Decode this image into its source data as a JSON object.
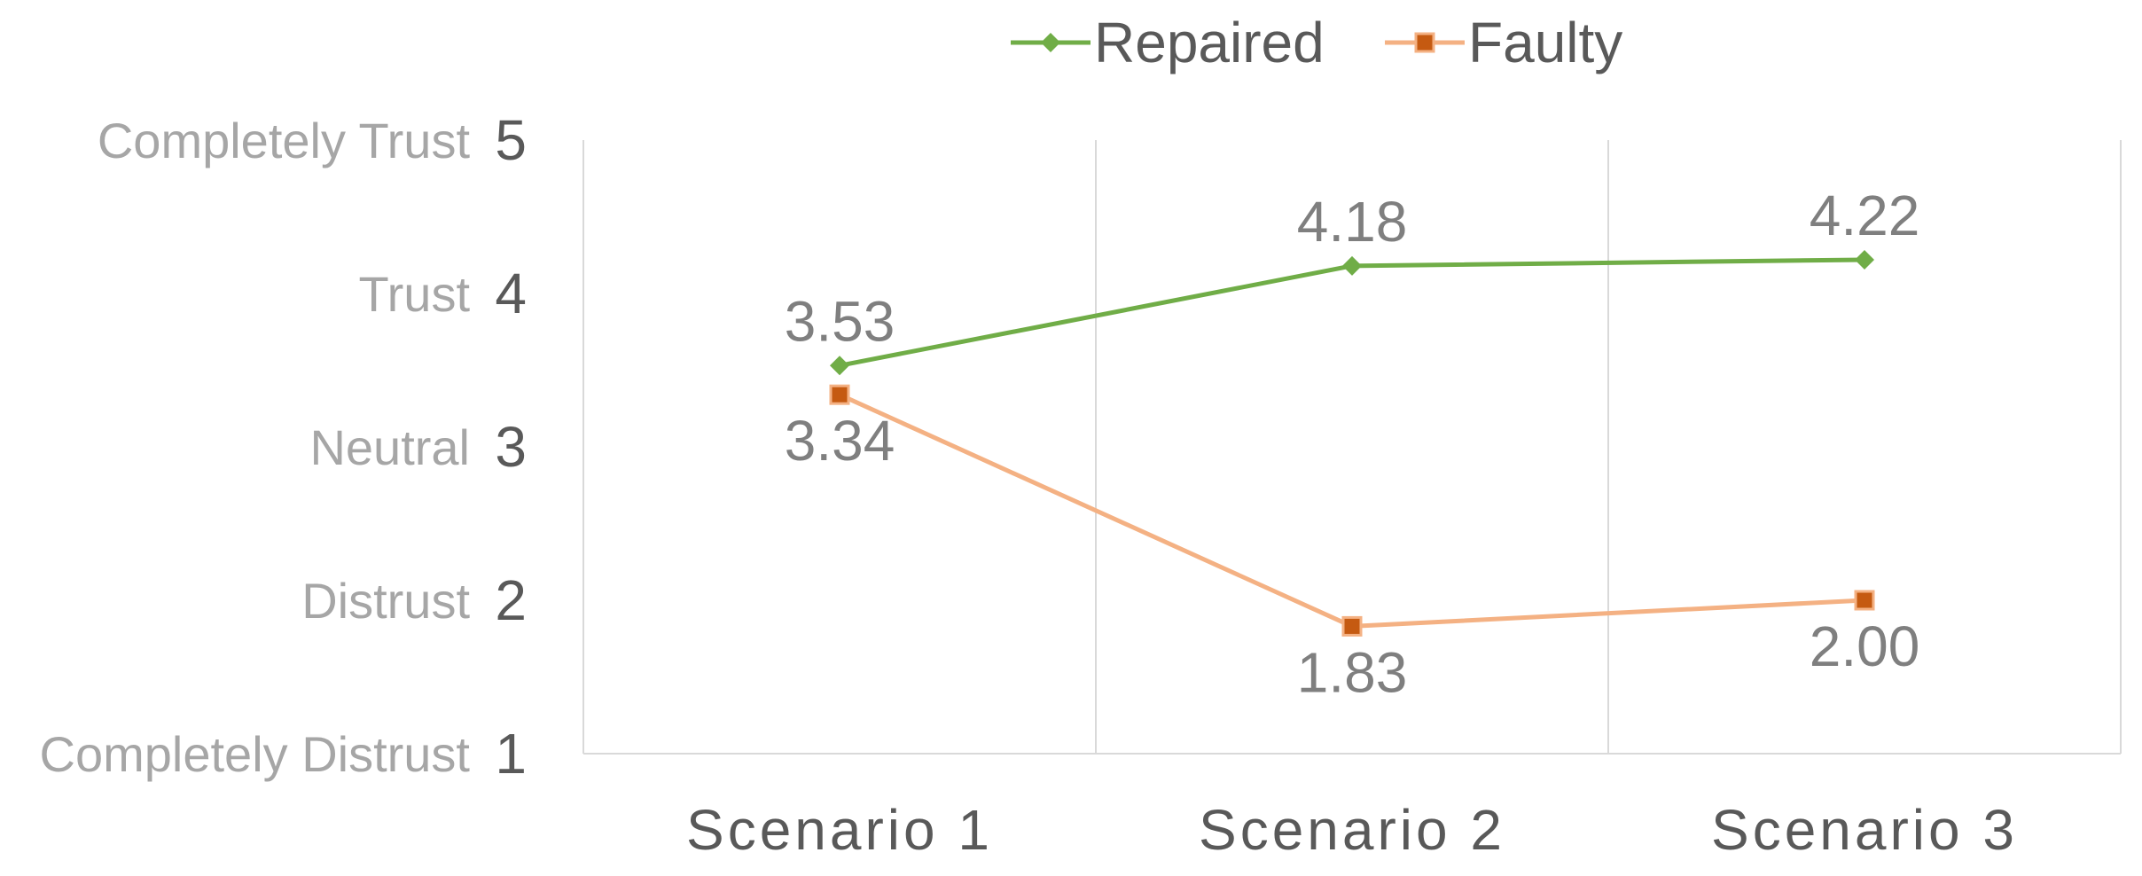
{
  "chart_data": {
    "type": "line",
    "categories": [
      "Scenario 1",
      "Scenario 2",
      "Scenario 3"
    ],
    "series": [
      {
        "name": "Repaired",
        "values": [
          3.53,
          4.18,
          4.22
        ],
        "labels": [
          "3.53",
          "4.18",
          "4.22"
        ],
        "color": "#70ad47",
        "line_color": "#70ad47",
        "marker": "diamond",
        "label_position": "above"
      },
      {
        "name": "Faulty",
        "values": [
          3.34,
          1.83,
          2.0
        ],
        "labels": [
          "3.34",
          "1.83",
          "2.00"
        ],
        "color": "#c55a11",
        "line_color": "#f4b183",
        "marker": "square",
        "label_position": "below"
      }
    ],
    "ylim": [
      1,
      5
    ],
    "yticks": [
      5,
      4,
      3,
      2,
      1
    ],
    "ytick_labels": [
      "5",
      "4",
      "3",
      "2",
      "1"
    ],
    "ycategory_labels": [
      "Completely Trust",
      "Trust",
      "Neutral",
      "Distrust",
      "Completely Distrust"
    ],
    "legend_position": "top",
    "grid": "vertical",
    "title": "",
    "xlabel": "",
    "ylabel": ""
  }
}
